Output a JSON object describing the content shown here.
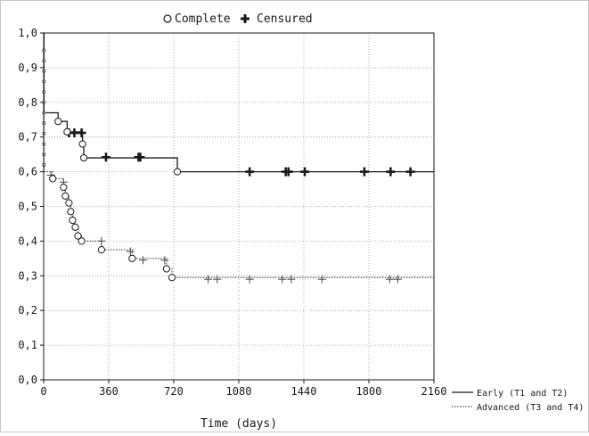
{
  "legend_top": {
    "complete_label": "Complete",
    "censured_label": "Censured"
  },
  "chart_data": {
    "type": "line",
    "xlabel": "Time (days)",
    "ylabel": "",
    "xlim": [
      0,
      2160
    ],
    "ylim": [
      0,
      1
    ],
    "grid": true,
    "x_ticks": [
      0,
      360,
      720,
      1080,
      1440,
      1800,
      2160
    ],
    "y_ticks": [
      "0,0",
      "0,1",
      "0,2",
      "0,3",
      "0,4",
      "0,5",
      "0,6",
      "0,7",
      "0,8",
      "0,9",
      "1,0"
    ],
    "legend_position": "bottom-right, outside plot",
    "series": [
      {
        "name": "Early (T1 and T2)",
        "style": "solid",
        "color": "#1a1a1a",
        "steps": [
          [
            0,
            1.0
          ],
          [
            2,
            0.77
          ],
          [
            80,
            0.745
          ],
          [
            130,
            0.715
          ],
          [
            215,
            0.68
          ],
          [
            222,
            0.64
          ],
          [
            740,
            0.6
          ],
          [
            2160,
            0.6
          ]
        ],
        "complete": [
          [
            80,
            0.745
          ],
          [
            130,
            0.715
          ],
          [
            215,
            0.68
          ],
          [
            222,
            0.64
          ],
          [
            740,
            0.6
          ]
        ],
        "censored": [
          [
            140,
            0.712
          ],
          [
            170,
            0.712
          ],
          [
            210,
            0.712
          ],
          [
            345,
            0.642
          ],
          [
            525,
            0.642
          ],
          [
            535,
            0.642
          ],
          [
            1140,
            0.6
          ],
          [
            1340,
            0.6
          ],
          [
            1355,
            0.6
          ],
          [
            1445,
            0.6
          ],
          [
            1775,
            0.6
          ],
          [
            1920,
            0.6
          ],
          [
            2030,
            0.6
          ]
        ]
      },
      {
        "name": "Advanced (T3 and T4)",
        "style": "dotted",
        "color": "#555555",
        "steps": [
          [
            0,
            1.0
          ],
          [
            2,
            0.6
          ],
          [
            50,
            0.58
          ],
          [
            110,
            0.555
          ],
          [
            120,
            0.53
          ],
          [
            140,
            0.51
          ],
          [
            150,
            0.485
          ],
          [
            160,
            0.46
          ],
          [
            175,
            0.44
          ],
          [
            190,
            0.415
          ],
          [
            210,
            0.4
          ],
          [
            320,
            0.375
          ],
          [
            490,
            0.35
          ],
          [
            680,
            0.32
          ],
          [
            710,
            0.295
          ],
          [
            2160,
            0.295
          ]
        ],
        "complete": [
          [
            50,
            0.58
          ],
          [
            110,
            0.555
          ],
          [
            120,
            0.53
          ],
          [
            140,
            0.51
          ],
          [
            150,
            0.485
          ],
          [
            160,
            0.46
          ],
          [
            175,
            0.44
          ],
          [
            190,
            0.415
          ],
          [
            210,
            0.4
          ],
          [
            320,
            0.375
          ],
          [
            490,
            0.35
          ],
          [
            680,
            0.32
          ],
          [
            710,
            0.295
          ]
        ],
        "censored": [
          [
            40,
            0.59
          ],
          [
            110,
            0.57
          ],
          [
            320,
            0.4
          ],
          [
            480,
            0.37
          ],
          [
            550,
            0.345
          ],
          [
            670,
            0.345
          ],
          [
            910,
            0.29
          ],
          [
            960,
            0.29
          ],
          [
            1140,
            0.29
          ],
          [
            1320,
            0.29
          ],
          [
            1370,
            0.29
          ],
          [
            1540,
            0.29
          ],
          [
            1915,
            0.29
          ],
          [
            1960,
            0.29
          ]
        ]
      }
    ]
  }
}
